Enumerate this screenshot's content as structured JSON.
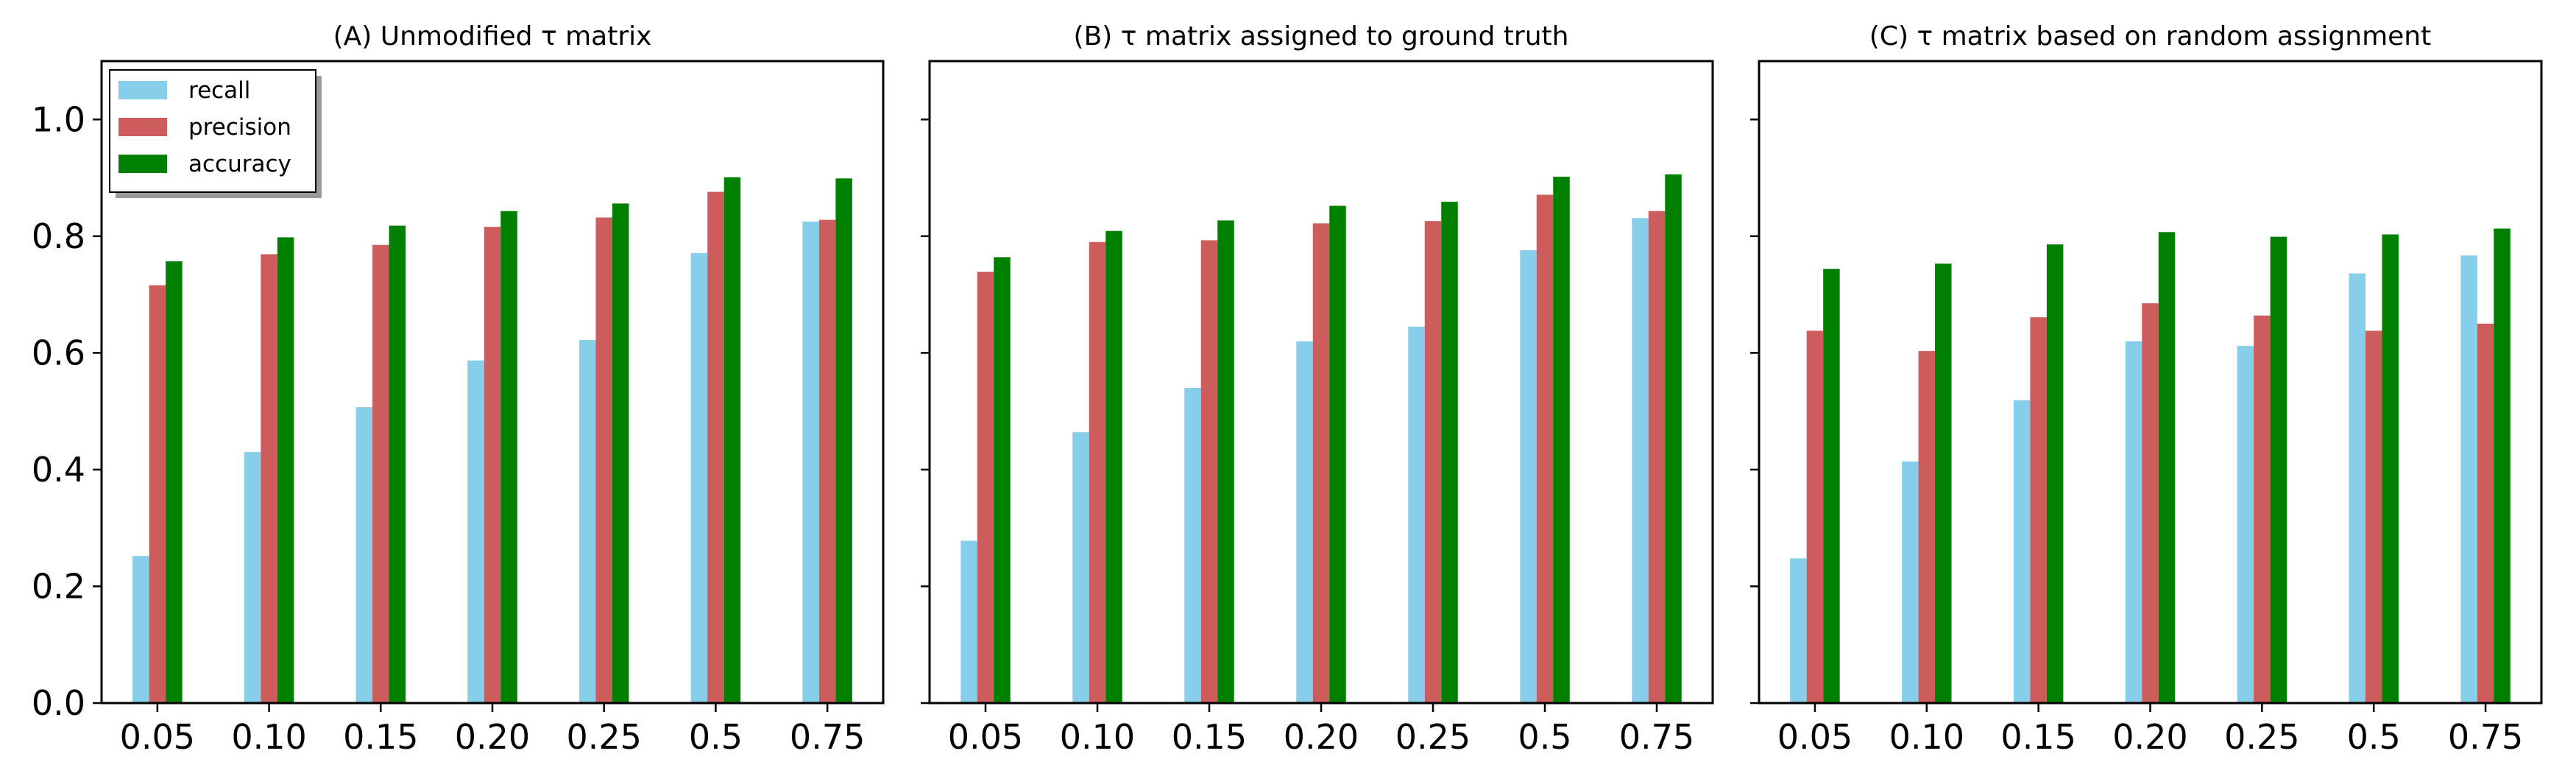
{
  "chart_data": [
    {
      "type": "bar",
      "title": "(A) Unmodified τ matrix",
      "categories": [
        "0.05",
        "0.10",
        "0.15",
        "0.20",
        "0.25",
        "0.5",
        "0.75"
      ],
      "series": [
        {
          "name": "recall",
          "color": "#87ceeb",
          "values": [
            0.252,
            0.43,
            0.507,
            0.587,
            0.622,
            0.771,
            0.825
          ]
        },
        {
          "name": "precision",
          "color": "#cd5c5c",
          "values": [
            0.716,
            0.769,
            0.785,
            0.816,
            0.832,
            0.876,
            0.828
          ]
        },
        {
          "name": "accuracy",
          "color": "#008000",
          "values": [
            0.757,
            0.798,
            0.818,
            0.843,
            0.856,
            0.901,
            0.899
          ]
        }
      ],
      "ylim": [
        0,
        1.1
      ],
      "yticks": [
        "0.0",
        "0.2",
        "0.4",
        "0.6",
        "0.8",
        "1.0"
      ],
      "show_yticklabels": true,
      "legend": "top-left",
      "grid": false
    },
    {
      "type": "bar",
      "title": "(B) τ matrix assigned to ground truth",
      "categories": [
        "0.05",
        "0.10",
        "0.15",
        "0.20",
        "0.25",
        "0.5",
        "0.75"
      ],
      "series": [
        {
          "name": "recall",
          "color": "#87ceeb",
          "values": [
            0.278,
            0.464,
            0.54,
            0.62,
            0.645,
            0.776,
            0.831
          ]
        },
        {
          "name": "precision",
          "color": "#cd5c5c",
          "values": [
            0.739,
            0.79,
            0.793,
            0.822,
            0.826,
            0.871,
            0.843
          ]
        },
        {
          "name": "accuracy",
          "color": "#008000",
          "values": [
            0.764,
            0.809,
            0.827,
            0.852,
            0.859,
            0.902,
            0.906
          ]
        }
      ],
      "ylim": [
        0,
        1.1
      ],
      "yticks": [
        "0.0",
        "0.2",
        "0.4",
        "0.6",
        "0.8",
        "1.0"
      ],
      "show_yticklabels": false,
      "grid": false
    },
    {
      "type": "bar",
      "title": "(C) τ matrix based on random assignment",
      "categories": [
        "0.05",
        "0.10",
        "0.15",
        "0.20",
        "0.25",
        "0.5",
        "0.75"
      ],
      "series": [
        {
          "name": "recall",
          "color": "#87ceeb",
          "values": [
            0.248,
            0.414,
            0.519,
            0.62,
            0.612,
            0.736,
            0.767
          ]
        },
        {
          "name": "precision",
          "color": "#cd5c5c",
          "values": [
            0.638,
            0.603,
            0.661,
            0.685,
            0.664,
            0.638,
            0.65
          ]
        },
        {
          "name": "accuracy",
          "color": "#008000",
          "values": [
            0.744,
            0.753,
            0.786,
            0.807,
            0.799,
            0.803,
            0.813
          ]
        }
      ],
      "ylim": [
        0,
        1.1
      ],
      "yticks": [
        "0.0",
        "0.2",
        "0.4",
        "0.6",
        "0.8",
        "1.0"
      ],
      "show_yticklabels": false,
      "grid": false
    }
  ]
}
